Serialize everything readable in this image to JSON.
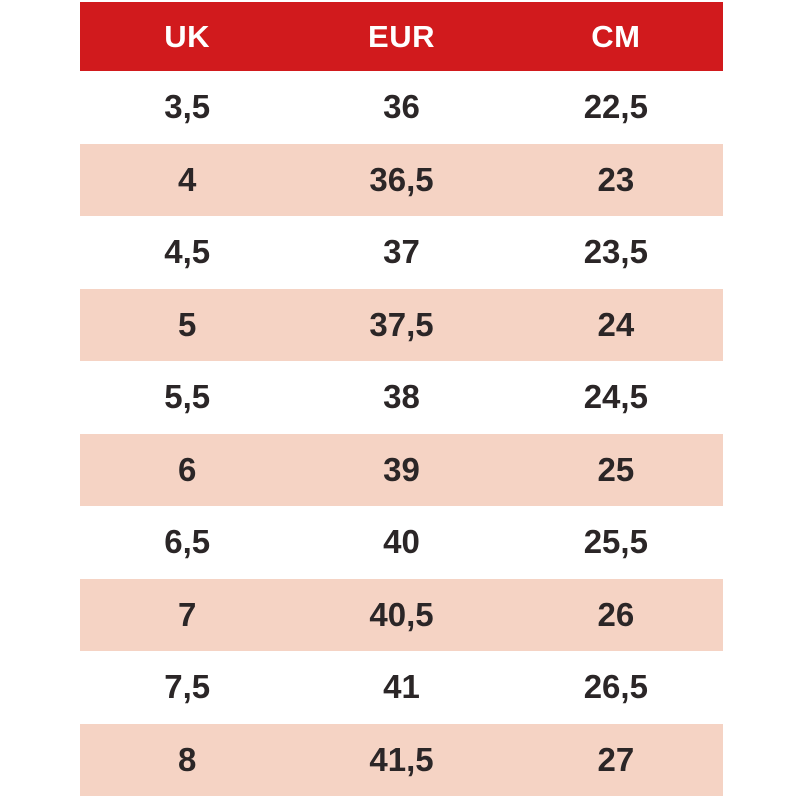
{
  "colors": {
    "page_bg": "#ffffff",
    "header_bg": "#d11a1d",
    "header_text": "#ffffff",
    "row_bg": "#ffffff",
    "row_alt_bg": "#f5d3c4",
    "text": "#2b2627"
  },
  "table": {
    "headers": [
      "UK",
      "EUR",
      "CM"
    ],
    "rows": [
      [
        "3,5",
        "36",
        "22,5"
      ],
      [
        "4",
        "36,5",
        "23"
      ],
      [
        "4,5",
        "37",
        "23,5"
      ],
      [
        "5",
        "37,5",
        "24"
      ],
      [
        "5,5",
        "38",
        "24,5"
      ],
      [
        "6",
        "39",
        "25"
      ],
      [
        "6,5",
        "40",
        "25,5"
      ],
      [
        "7",
        "40,5",
        "26"
      ],
      [
        "7,5",
        "41",
        "26,5"
      ],
      [
        "8",
        "41,5",
        "27"
      ]
    ]
  },
  "chart_data": {
    "type": "table",
    "columns": [
      "UK",
      "EUR",
      "CM"
    ],
    "rows": [
      [
        "3,5",
        "36",
        "22,5"
      ],
      [
        "4",
        "36,5",
        "23"
      ],
      [
        "4,5",
        "37",
        "23,5"
      ],
      [
        "5",
        "37,5",
        "24"
      ],
      [
        "5,5",
        "38",
        "24,5"
      ],
      [
        "6",
        "39",
        "25"
      ],
      [
        "6,5",
        "40",
        "25,5"
      ],
      [
        "7",
        "40,5",
        "26"
      ],
      [
        "7,5",
        "41",
        "26,5"
      ],
      [
        "8",
        "41,5",
        "27"
      ]
    ],
    "layout_hints": {
      "header_style": "red-background-white-bold-text",
      "row_striping": "alternating white and light-peach starting with white",
      "column_alignment": "center",
      "grid": "off"
    }
  }
}
